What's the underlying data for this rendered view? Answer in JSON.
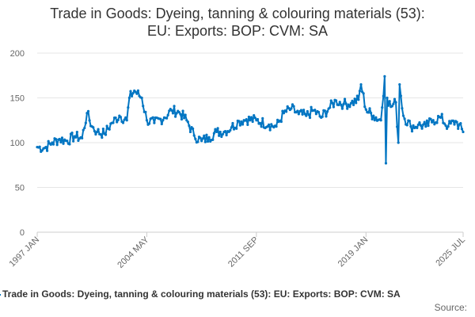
{
  "chart_data": {
    "type": "line",
    "title_line1": "Trade in Goods: Dyeing, tanning & colouring materials (53):",
    "title_line2": "EU: Exports: BOP: CVM: SA",
    "y_ticks": [
      "0",
      "50",
      "100",
      "150",
      "200"
    ],
    "ylim": [
      0,
      200
    ],
    "x_tick_labels": [
      "1997 JAN",
      "2004 MAY",
      "2011 SEP",
      "2019 JAN",
      "2025 JUL"
    ],
    "grid": "horizontal",
    "legend_position": "bottom",
    "legend_label": "Trade in Goods: Dyeing, tanning & colouring materials (53): EU: Exports: BOP: CVM: SA",
    "source_label": "Source:",
    "series_color": "#0075c2",
    "series": [
      {
        "name": "Trade in Goods: Dyeing, tanning & colouring materials (53): EU: Exports: BOP: CVM: SA",
        "x_start": "1997 JAN",
        "frequency": "monthly",
        "anchors": [
          {
            "date": "1997 JAN",
            "value": 95
          },
          {
            "date": "1997 JUL",
            "value": 94
          },
          {
            "date": "1998 JAN",
            "value": 100
          },
          {
            "date": "1998 JUL",
            "value": 104
          },
          {
            "date": "1999 JAN",
            "value": 102
          },
          {
            "date": "1999 JUL",
            "value": 107
          },
          {
            "date": "2000 JAN",
            "value": 105
          },
          {
            "date": "2000 MAY",
            "value": 133
          },
          {
            "date": "2000 SEP",
            "value": 118
          },
          {
            "date": "2001 JAN",
            "value": 112
          },
          {
            "date": "2001 JUL",
            "value": 110
          },
          {
            "date": "2002 JAN",
            "value": 122
          },
          {
            "date": "2002 JUL",
            "value": 130
          },
          {
            "date": "2003 JAN",
            "value": 125
          },
          {
            "date": "2003 MAR",
            "value": 150
          },
          {
            "date": "2003 JUL",
            "value": 158
          },
          {
            "date": "2004 JAN",
            "value": 150
          },
          {
            "date": "2004 MAY",
            "value": 125
          },
          {
            "date": "2004 NOV",
            "value": 122
          },
          {
            "date": "2005 JUL",
            "value": 128
          },
          {
            "date": "2006 JAN",
            "value": 136
          },
          {
            "date": "2006 JUL",
            "value": 134
          },
          {
            "date": "2007 JAN",
            "value": 125
          },
          {
            "date": "2007 JUL",
            "value": 108
          },
          {
            "date": "2008 JAN",
            "value": 102
          },
          {
            "date": "2008 JUL",
            "value": 106
          },
          {
            "date": "2009 JAN",
            "value": 112
          },
          {
            "date": "2009 JUL",
            "value": 112
          },
          {
            "date": "2010 JAN",
            "value": 117
          },
          {
            "date": "2010 JUL",
            "value": 124
          },
          {
            "date": "2011 JAN",
            "value": 126
          },
          {
            "date": "2011 SEP",
            "value": 125
          },
          {
            "date": "2012 JUL",
            "value": 120
          },
          {
            "date": "2013 JAN",
            "value": 118
          },
          {
            "date": "2013 JUL",
            "value": 133
          },
          {
            "date": "2014 JAN",
            "value": 138
          },
          {
            "date": "2014 JUL",
            "value": 132
          },
          {
            "date": "2015 JAN",
            "value": 130
          },
          {
            "date": "2015 JUL",
            "value": 136
          },
          {
            "date": "2016 JAN",
            "value": 128
          },
          {
            "date": "2016 JUL",
            "value": 138
          },
          {
            "date": "2017 JAN",
            "value": 147
          },
          {
            "date": "2017 JUL",
            "value": 143
          },
          {
            "date": "2018 JAN",
            "value": 144
          },
          {
            "date": "2018 JUL",
            "value": 148
          },
          {
            "date": "2018 SEP",
            "value": 165
          },
          {
            "date": "2019 JAN",
            "value": 137
          },
          {
            "date": "2019 JUL",
            "value": 130
          },
          {
            "date": "2020 JAN",
            "value": 125
          },
          {
            "date": "2020 APR",
            "value": 174
          },
          {
            "date": "2020 MAY",
            "value": 77
          },
          {
            "date": "2020 JUN",
            "value": 150
          },
          {
            "date": "2020 SEP",
            "value": 140
          },
          {
            "date": "2021 JAN",
            "value": 145
          },
          {
            "date": "2021 MAR",
            "value": 100
          },
          {
            "date": "2021 APR",
            "value": 165
          },
          {
            "date": "2021 JUL",
            "value": 130
          },
          {
            "date": "2022 JAN",
            "value": 118
          },
          {
            "date": "2022 JUL",
            "value": 120
          },
          {
            "date": "2023 JAN",
            "value": 118
          },
          {
            "date": "2023 JUL",
            "value": 125
          },
          {
            "date": "2024 JAN",
            "value": 128
          },
          {
            "date": "2024 JUL",
            "value": 118
          },
          {
            "date": "2025 JAN",
            "value": 124
          },
          {
            "date": "2025 JUL",
            "value": 112
          }
        ]
      }
    ]
  }
}
